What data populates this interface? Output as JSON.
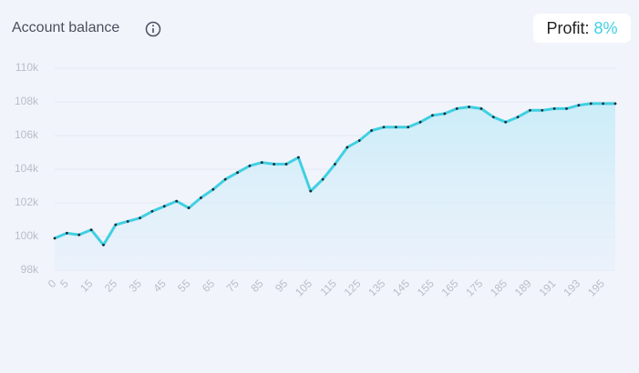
{
  "header": {
    "title": "Account balance",
    "profit_label": "Profit:",
    "profit_value": "8%"
  },
  "chart_data": {
    "type": "area-line",
    "categories": [
      "0",
      "5",
      null,
      "15",
      null,
      "25",
      null,
      "35",
      null,
      "45",
      null,
      "55",
      null,
      "65",
      null,
      "75",
      null,
      "85",
      null,
      "95",
      null,
      "105",
      null,
      "115",
      null,
      "125",
      null,
      "135",
      null,
      "145",
      null,
      "155",
      null,
      "165",
      null,
      "175",
      null,
      "185",
      null,
      "189",
      null,
      "191",
      null,
      "193",
      null,
      "195",
      null
    ],
    "values": [
      99900,
      100200,
      100100,
      100400,
      99500,
      100700,
      100900,
      101100,
      101500,
      101800,
      102100,
      101700,
      102300,
      102800,
      103400,
      103800,
      104200,
      104400,
      104300,
      104300,
      104700,
      102700,
      103400,
      104300,
      105300,
      105700,
      106300,
      106500,
      106500,
      106500,
      106800,
      107200,
      107300,
      107600,
      107700,
      107600,
      107100,
      106800,
      107100,
      107500,
      107500,
      107600,
      107600,
      107800,
      107900,
      107900,
      107900
    ],
    "color": "#3fd0e2",
    "ylim": [
      98000,
      110000
    ],
    "yticks": [
      {
        "value": 98000,
        "label": "98k"
      },
      {
        "value": 100000,
        "label": "100k"
      },
      {
        "value": 102000,
        "label": "102k"
      },
      {
        "value": 104000,
        "label": "104k"
      },
      {
        "value": 106000,
        "label": "106k"
      },
      {
        "value": 108000,
        "label": "108k"
      },
      {
        "value": 110000,
        "label": "110k"
      }
    ],
    "grid": true
  }
}
